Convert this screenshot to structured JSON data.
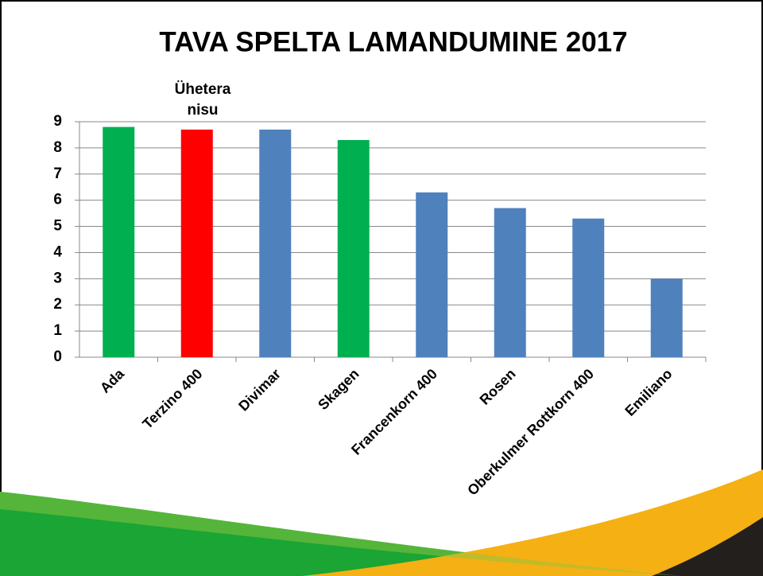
{
  "chart_data": {
    "type": "bar",
    "title": "TAVA SPELTA LAMANDUMINE  2017",
    "annotation": "Ühetera nisu",
    "categories": [
      "Ada",
      "Terzino 400",
      "Divimar",
      "Skagen",
      "Francenkorn 400",
      "Rosen",
      "Oberkulmer Rottkorn 400",
      "Emiliano"
    ],
    "values": [
      8.8,
      8.7,
      8.7,
      8.3,
      6.3,
      5.7,
      5.3,
      3.0
    ],
    "colors": [
      "#00b050",
      "#ff0000",
      "#4f81bd",
      "#00b050",
      "#4f81bd",
      "#4f81bd",
      "#4f81bd",
      "#4f81bd"
    ],
    "ylim": [
      0,
      9
    ],
    "yticks": [
      0,
      1,
      2,
      3,
      4,
      5,
      6,
      7,
      8,
      9
    ],
    "grid": true
  }
}
